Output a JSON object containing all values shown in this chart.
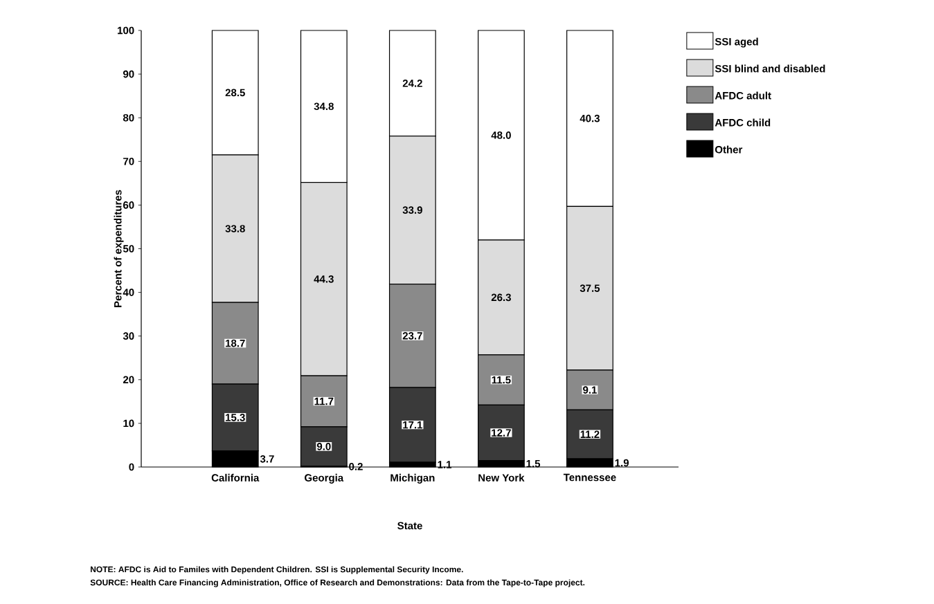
{
  "chart_data": {
    "type": "bar",
    "stacked": true,
    "xlabel": "State",
    "ylabel": "Percent of expenditures",
    "categories": [
      "California",
      "Georgia",
      "Michigan",
      "New York",
      "Tennessee"
    ],
    "series": [
      {
        "name": "Other",
        "color": "#000000",
        "values": [
          3.7,
          0.2,
          1.1,
          1.5,
          1.9
        ],
        "value_labels": [
          "3.7",
          "0.2",
          "1.1",
          "1.5",
          "1.9"
        ]
      },
      {
        "name": "AFDC child",
        "color": "#3a3a3a",
        "values": [
          15.3,
          9.0,
          17.1,
          12.7,
          11.2
        ],
        "value_labels": [
          "15.3",
          "9.0",
          "17.1",
          "12.7",
          "11.2"
        ]
      },
      {
        "name": "AFDC adult",
        "color": "#8a8a8a",
        "values": [
          18.7,
          11.7,
          23.7,
          11.5,
          9.1
        ],
        "value_labels": [
          "18.7",
          "11.7",
          "23.7",
          "11.5",
          "9.1"
        ]
      },
      {
        "name": "SSI blind and disabled",
        "color": "#dcdcdc",
        "values": [
          33.8,
          44.3,
          33.9,
          26.3,
          37.5
        ],
        "value_labels": [
          "33.8",
          "44.3",
          "33.9",
          "26.3",
          "37.5"
        ]
      },
      {
        "name": "SSI aged",
        "color": "#ffffff",
        "values": [
          28.5,
          34.8,
          24.2,
          48.0,
          40.3
        ],
        "value_labels": [
          "28.5",
          "34.8",
          "24.2",
          "48.0",
          "40.3"
        ]
      }
    ],
    "ylim": [
      0,
      100
    ],
    "yticks": [
      0,
      10,
      20,
      30,
      40,
      50,
      60,
      70,
      80,
      90,
      100
    ],
    "legend": "right",
    "annotations": [
      "NOTE: AFDC is Aid to Familes with Dependent Children. SSI is Supplemental Security Income.",
      "SOURCE: Health Care Financing Administration, Office of Research and Demonstrations: Data from the Tape-to-Tape project."
    ]
  }
}
